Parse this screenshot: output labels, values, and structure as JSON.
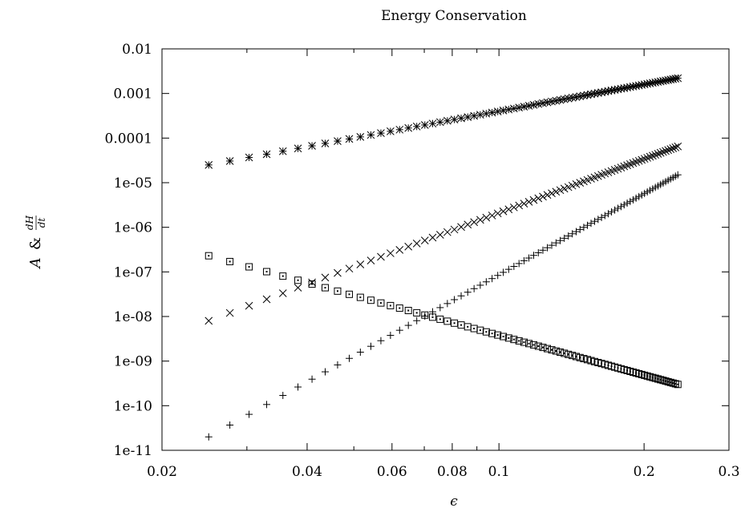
{
  "chart_data": {
    "type": "scatter",
    "title": "Energy Conservation",
    "xlabel": "ϵ",
    "ylabel": {
      "prefix": "A",
      "amp": "&",
      "frac_num": "dH",
      "frac_den": "dt"
    },
    "xscale": "log",
    "yscale": "log",
    "xlim": [
      0.02,
      0.3
    ],
    "ylim": [
      1e-11,
      0.01
    ],
    "xticks": [
      {
        "value": 0.02,
        "label": "0.02"
      },
      {
        "value": 0.04,
        "label": "0.04"
      },
      {
        "value": 0.06,
        "label": "0.06"
      },
      {
        "value": 0.08,
        "label": "0.08"
      },
      {
        "value": 0.1,
        "label": "0.1"
      },
      {
        "value": 0.2,
        "label": "0.2"
      },
      {
        "value": 0.3,
        "label": "0.3"
      }
    ],
    "yticks": [
      {
        "value": 1e-11,
        "label": "1e-11"
      },
      {
        "value": 1e-10,
        "label": "1e-10"
      },
      {
        "value": 1e-09,
        "label": "1e-09"
      },
      {
        "value": 1e-08,
        "label": "1e-08"
      },
      {
        "value": 1e-07,
        "label": "1e-07"
      },
      {
        "value": 1e-06,
        "label": "1e-06"
      },
      {
        "value": 1e-05,
        "label": "1e-05"
      },
      {
        "value": 0.0001,
        "label": "0.0001"
      },
      {
        "value": 0.001,
        "label": "0.001"
      },
      {
        "value": 0.01,
        "label": "0.01"
      }
    ],
    "grid": false,
    "legend": "none",
    "series": [
      {
        "marker": "star",
        "x_range": [
          0.025,
          0.235
        ],
        "y_range": [
          2.5e-05,
          0.0022
        ],
        "points": 80,
        "early_points": [
          [
            0.025,
            2.5e-05
          ],
          [
            0.0268,
            3e-05
          ],
          [
            0.0288,
            3.5e-05
          ],
          [
            0.031,
            4e-05
          ],
          [
            0.0332,
            4.6e-05
          ]
        ]
      },
      {
        "marker": "cross",
        "x_range": [
          0.025,
          0.235
        ],
        "y_range": [
          8e-09,
          6.5e-05
        ],
        "points": 80,
        "early_points": [
          [
            0.025,
            8e-09
          ],
          [
            0.0268,
            1.15e-08
          ],
          [
            0.0288,
            1.7e-08
          ],
          [
            0.031,
            2.5e-08
          ],
          [
            0.0332,
            3.5e-08
          ]
        ]
      },
      {
        "marker": "plus",
        "x_range": [
          0.025,
          0.235
        ],
        "y_range": [
          2e-11,
          1.5e-05
        ],
        "points": 80,
        "early_points": [
          [
            0.025,
            2e-11
          ],
          [
            0.0268,
            3.3e-11
          ],
          [
            0.0288,
            5.5e-11
          ],
          [
            0.031,
            8.5e-11
          ],
          [
            0.0332,
            1.35e-10
          ]
        ]
      },
      {
        "marker": "square",
        "x_range": [
          0.025,
          0.235
        ],
        "y_range": [
          2.3e-07,
          3e-10
        ],
        "points": 80,
        "early_points": [
          [
            0.025,
            2.3e-07
          ],
          [
            0.0268,
            1.9e-07
          ],
          [
            0.0288,
            1.55e-07
          ],
          [
            0.031,
            1.3e-07
          ],
          [
            0.0332,
            1.1e-07
          ]
        ]
      }
    ]
  }
}
